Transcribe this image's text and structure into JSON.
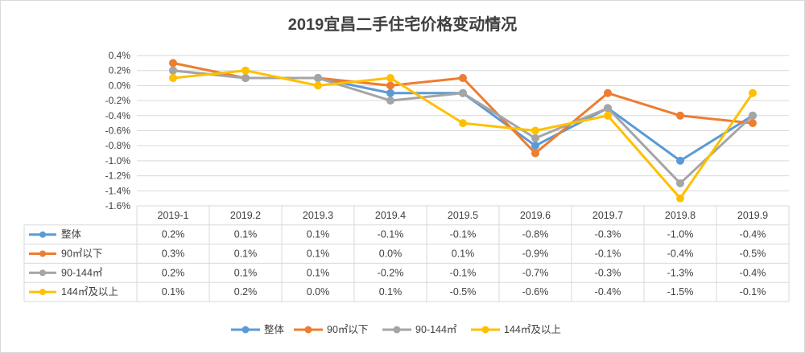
{
  "chart_data": {
    "type": "line",
    "title": "2019宜昌二手住宅价格变动情况",
    "categories": [
      "2019-1",
      "2019.2",
      "2019.3",
      "2019.4",
      "2019.5",
      "2019.6",
      "2019.7",
      "2019.8",
      "2019.9"
    ],
    "y_ticks": [
      "0.4%",
      "0.2%",
      "0.0%",
      "-0.2%",
      "-0.4%",
      "-0.6%",
      "-0.8%",
      "-1.0%",
      "-1.2%",
      "-1.4%",
      "-1.6%"
    ],
    "ylim": [
      -1.6,
      0.4
    ],
    "grid": true,
    "legend_position": "bottom",
    "series": [
      {
        "name": "整体",
        "color": "#5b9bd5",
        "values": [
          0.2,
          0.1,
          0.1,
          -0.1,
          -0.1,
          -0.8,
          -0.3,
          -1.0,
          -0.4
        ],
        "labels": [
          "0.2%",
          "0.1%",
          "0.1%",
          "-0.1%",
          "-0.1%",
          "-0.8%",
          "-0.3%",
          "-1.0%",
          "-0.4%"
        ]
      },
      {
        "name": "90㎡以下",
        "color": "#ed7d31",
        "values": [
          0.3,
          0.1,
          0.1,
          0.0,
          0.1,
          -0.9,
          -0.1,
          -0.4,
          -0.5
        ],
        "labels": [
          "0.3%",
          "0.1%",
          "0.1%",
          "0.0%",
          "0.1%",
          "-0.9%",
          "-0.1%",
          "-0.4%",
          "-0.5%"
        ]
      },
      {
        "name": "90-144㎡",
        "color": "#a5a5a5",
        "values": [
          0.2,
          0.1,
          0.1,
          -0.2,
          -0.1,
          -0.7,
          -0.3,
          -1.3,
          -0.4
        ],
        "labels": [
          "0.2%",
          "0.1%",
          "0.1%",
          "-0.2%",
          "-0.1%",
          "-0.7%",
          "-0.3%",
          "-1.3%",
          "-0.4%"
        ]
      },
      {
        "name": "144㎡及以上",
        "color": "#ffc000",
        "values": [
          0.1,
          0.2,
          0.0,
          0.1,
          -0.5,
          -0.6,
          -0.4,
          -1.5,
          -0.1
        ],
        "labels": [
          "0.1%",
          "0.2%",
          "0.0%",
          "0.1%",
          "-0.5%",
          "-0.6%",
          "-0.4%",
          "-1.5%",
          "-0.1%"
        ]
      }
    ]
  }
}
